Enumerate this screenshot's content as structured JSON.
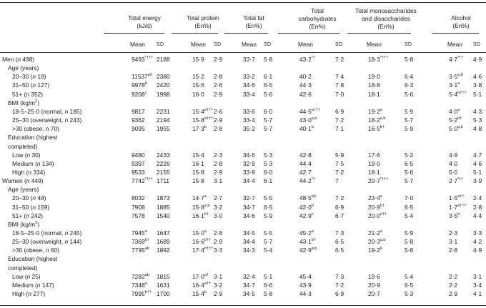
{
  "headers": [
    {
      "line1": "Total energy",
      "line2": "(kJ/d)",
      "line3": ""
    },
    {
      "line1": "Total protein",
      "line2": "(En%)",
      "line3": ""
    },
    {
      "line1": "Total fat",
      "line2": "(En%)",
      "line3": ""
    },
    {
      "line1": "Total",
      "line2": "carbohydrates",
      "line3": "(En%)"
    },
    {
      "line1": "Total monosaccharides",
      "line2": "and disaccharides",
      "line3": "(En%)"
    },
    {
      "line1": "Alcohol",
      "line2": "(En%)",
      "line3": ""
    }
  ],
  "subheaders": {
    "mean": "Mean",
    "sd": "SD"
  },
  "rows": [
    {
      "indent": 0,
      "label": "Men (",
      "n": "n",
      "count": " 498)",
      "cells": [
        [
          "9493",
          "*†††",
          "2188"
        ],
        [
          "15·9",
          "",
          "2·9"
        ],
        [
          "33·7",
          "",
          "5·8"
        ],
        [
          "43·2",
          "*†",
          "7·2"
        ],
        [
          "18·3",
          "*†††",
          "5·8"
        ],
        [
          "4·7",
          "*††",
          "4·9"
        ]
      ]
    },
    {
      "indent": 1,
      "label": "Age (years)",
      "n": "",
      "count": "",
      "cells": []
    },
    {
      "indent": 2,
      "label": "20–30 (",
      "n": "n",
      "count": " 19)",
      "cells": [
        [
          "11537",
          "a§",
          "2380"
        ],
        [
          "15·2",
          "",
          "2·8"
        ],
        [
          "33·2",
          "",
          "6·1"
        ],
        [
          "40·2",
          "",
          "7·4"
        ],
        [
          "19·0",
          "",
          "6·4"
        ],
        [
          "3·5",
          "a,b",
          "4·6"
        ]
      ]
    },
    {
      "indent": 2,
      "label": "31–50 (",
      "n": "n",
      "count": " 127)",
      "cells": [
        [
          "9978",
          "b",
          "2420"
        ],
        [
          "15·6",
          "",
          "2·6"
        ],
        [
          "34·6",
          "",
          "6·5"
        ],
        [
          "44·3",
          "",
          "7·8"
        ],
        [
          "18·8",
          "",
          "6·3"
        ],
        [
          "3·1",
          "a",
          "3·8"
        ]
      ]
    },
    {
      "indent": 2,
      "label": "51+ (",
      "n": "n",
      "count": " 352)",
      "cells": [
        [
          "9208",
          "c",
          "1998"
        ],
        [
          "16·0",
          "",
          "2·9"
        ],
        [
          "33·4",
          "",
          "5·6"
        ],
        [
          "42·6",
          "",
          "7·0"
        ],
        [
          "18·1",
          "",
          "5·6"
        ],
        [
          "5·4",
          "b†††",
          "5·1"
        ]
      ]
    },
    {
      "indent": 1,
      "label": "BMI (kg/m",
      "n": "",
      "count": "2)",
      "cells": []
    },
    {
      "indent": 2,
      "label": "18·5–25·0 (normal, ",
      "n": "n",
      "count": " 185)",
      "cells": [
        [
          "9817",
          "",
          "2231"
        ],
        [
          "15·4",
          "a†††",
          "2·6"
        ],
        [
          "33·6",
          "",
          "6·0"
        ],
        [
          "44·5",
          "a†††",
          "6·9"
        ],
        [
          "19·2",
          "a",
          "5·9"
        ],
        [
          "4·0",
          "a",
          "4·3"
        ]
      ]
    },
    {
      "indent": 2,
      "label": "25–30 (overweight, ",
      "n": "n",
      "count": " 243)",
      "cells": [
        [
          "9362",
          "",
          "2194"
        ],
        [
          "15·8",
          "a†††",
          "2·9"
        ],
        [
          "33·4",
          "",
          "5·7"
        ],
        [
          "43·0",
          "a,b",
          "7·2"
        ],
        [
          "18·2",
          "a,b",
          "5·7"
        ],
        [
          "5·2",
          "b†",
          "5·3"
        ]
      ]
    },
    {
      "indent": 2,
      "label": ">30 (obese, ",
      "n": "n",
      "count": " 70)",
      "cells": [
        [
          "9095",
          "",
          "1955"
        ],
        [
          "17·3",
          "b",
          "2·8"
        ],
        [
          "35·2",
          "",
          "5·7"
        ],
        [
          "40·1",
          "b",
          "7·1"
        ],
        [
          "16·5",
          "b†",
          "5·9"
        ],
        [
          "5·0",
          "a,b",
          "4·8"
        ]
      ]
    },
    {
      "indent": 1,
      "label": "Education (highest",
      "n": "",
      "count": "",
      "cells": []
    },
    {
      "indent": 1,
      "label": "completed)",
      "n": "",
      "count": "",
      "cells": []
    },
    {
      "indent": 2,
      "label": "Low (",
      "n": "n",
      "count": " 30)",
      "cells": [
        [
          "9480",
          "",
          "2433"
        ],
        [
          "15·4",
          "",
          "2·3"
        ],
        [
          "34·6",
          "",
          "5·3"
        ],
        [
          "42·8",
          "",
          "5·9"
        ],
        [
          "17·6",
          "",
          "5·2"
        ],
        [
          "4·9",
          "",
          "4·7"
        ]
      ]
    },
    {
      "indent": 2,
      "label": "Medium (",
      "n": "n",
      "count": " 134)",
      "cells": [
        [
          "9397",
          "",
          "2226"
        ],
        [
          "16·1",
          "",
          "2·8"
        ],
        [
          "32·9",
          "",
          "5·3"
        ],
        [
          "44·4",
          "",
          "7·5"
        ],
        [
          "19·0",
          "",
          "6·5"
        ],
        [
          "4·0",
          "",
          "4·6"
        ]
      ]
    },
    {
      "indent": 2,
      "label": "High (",
      "n": "n",
      "count": " 334)",
      "cells": [
        [
          "9533",
          "",
          "2155"
        ],
        [
          "15·8",
          "",
          "2·9"
        ],
        [
          "33·9",
          "",
          "6·0"
        ],
        [
          "42·7",
          "",
          "7·2"
        ],
        [
          "18·1",
          "",
          "5·6"
        ],
        [
          "5·0",
          "",
          "5·1"
        ]
      ]
    },
    {
      "indent": 0,
      "label": "Women (",
      "n": "n",
      "count": " 449)",
      "cells": [
        [
          "7742",
          "*†††",
          "1711"
        ],
        [
          "15·8",
          "",
          "3·1"
        ],
        [
          "34·4",
          "",
          "6·1"
        ],
        [
          "44·2",
          "*†",
          "7"
        ],
        [
          "20·7",
          "*†††",
          "5·7"
        ],
        [
          "2·7",
          "*††",
          "3·9"
        ]
      ]
    },
    {
      "indent": 1,
      "label": "Age (years)",
      "n": "",
      "count": "",
      "cells": []
    },
    {
      "indent": 2,
      "label": "20–30 (",
      "n": "n",
      "count": " 48)",
      "cells": [
        [
          "8032",
          "",
          "1873"
        ],
        [
          "14·7",
          "a",
          "2·7"
        ],
        [
          "32·7",
          "",
          "5·5"
        ],
        [
          "48·5",
          "a§",
          "7·2"
        ],
        [
          "23·4",
          "a",
          "7·0"
        ],
        [
          "1·5",
          "a††",
          "2·4"
        ]
      ]
    },
    {
      "indent": 2,
      "label": "31–50 (",
      "n": "n",
      "count": " 159)",
      "cells": [
        [
          "7908",
          "",
          "1885"
        ],
        [
          "15·8",
          "a,b",
          "3·2"
        ],
        [
          "34·7",
          "",
          "6·5"
        ],
        [
          "42·0",
          "b",
          "6·9"
        ],
        [
          "20·9",
          "b†",
          "6·5"
        ],
        [
          "1·7",
          "a†††",
          "2·8"
        ]
      ]
    },
    {
      "indent": 2,
      "label": "51+ (",
      "n": "n",
      "count": " 242)",
      "cells": [
        [
          "7578",
          "",
          "1540"
        ],
        [
          "16·1",
          "b†",
          "3·0"
        ],
        [
          "34·6",
          "",
          "5·9"
        ],
        [
          "42·9",
          "c",
          "6·7"
        ],
        [
          "20·0",
          "c††",
          "5·4"
        ],
        [
          "3·5",
          "b",
          "4·4"
        ]
      ]
    },
    {
      "indent": 1,
      "label": "BMI (kg/m",
      "n": "",
      "count": "2)",
      "cells": []
    },
    {
      "indent": 2,
      "label": "18·5–25·0 (normal, ",
      "n": "n",
      "count": " 245)",
      "cells": [
        [
          "7945",
          "a",
          "1647"
        ],
        [
          "15·0",
          "a",
          "2·8"
        ],
        [
          "34·5",
          "",
          "5·5"
        ],
        [
          "45·2",
          "a",
          "7·3"
        ],
        [
          "21·2",
          "a",
          "5·9"
        ],
        [
          "2·3",
          "",
          "3·3"
        ]
      ]
    },
    {
      "indent": 2,
      "label": "25–30 (overweight, ",
      "n": "n",
      "count": " 144)",
      "cells": [
        [
          "7369",
          "b†",
          "1689"
        ],
        [
          "16·6",
          "b††",
          "2·9"
        ],
        [
          "34·4",
          "",
          "5·7"
        ],
        [
          "43·1",
          "b†",
          "6·5"
        ],
        [
          "20·3",
          "a,b",
          "5·8"
        ],
        [
          "3·1",
          "",
          "4·2"
        ]
      ]
    },
    {
      "indent": 2,
      "label": ">30 (obese, ",
      "n": "n",
      "count": " 60)",
      "cells": [
        [
          "7795",
          "ab",
          "1892"
        ],
        [
          "17·4",
          "b†††",
          "3·3"
        ],
        [
          "34·3",
          "",
          "5·4"
        ],
        [
          "42·9",
          "a,b",
          "6·5"
        ],
        [
          "19·2",
          "b",
          "5·8"
        ],
        [
          "2·8",
          "",
          "4·9"
        ]
      ]
    },
    {
      "indent": 1,
      "label": "Education (highest",
      "n": "",
      "count": "",
      "cells": []
    },
    {
      "indent": 1,
      "label": "completed)",
      "n": "",
      "count": "",
      "cells": []
    },
    {
      "indent": 2,
      "label": "Low (",
      "n": "n",
      "count": " 25)",
      "cells": [
        [
          "7282",
          "ab",
          "1815"
        ],
        [
          "17·0",
          "a†",
          "3·1"
        ],
        [
          "32·4",
          "",
          "5·1"
        ],
        [
          "45·4",
          "",
          "7·3"
        ],
        [
          "19·6",
          "",
          "5·4"
        ],
        [
          "2·2",
          "",
          "3·1"
        ]
      ]
    },
    {
      "indent": 2,
      "label": "Medium (",
      "n": "n",
      "count": " 147)",
      "cells": [
        [
          "7348",
          "a",
          "1631"
        ],
        [
          "16·4",
          "a††",
          "3·2"
        ],
        [
          "34·7",
          "",
          "6·6"
        ],
        [
          "43·9",
          "",
          "7·2"
        ],
        [
          "20·9",
          "",
          "6·5"
        ],
        [
          "2·2",
          "",
          "3·4"
        ]
      ]
    },
    {
      "indent": 2,
      "label": "High (",
      "n": "n",
      "count": " 277)",
      "cells": [
        [
          "7995",
          "b††",
          "1700"
        ],
        [
          "15·4",
          "b",
          "2·9"
        ],
        [
          "34·5",
          "",
          "5·8"
        ],
        [
          "44·3",
          "",
          "6·9"
        ],
        [
          "20·7",
          "",
          "5·3"
        ],
        [
          "2·9",
          "",
          "4·1"
        ]
      ]
    }
  ]
}
